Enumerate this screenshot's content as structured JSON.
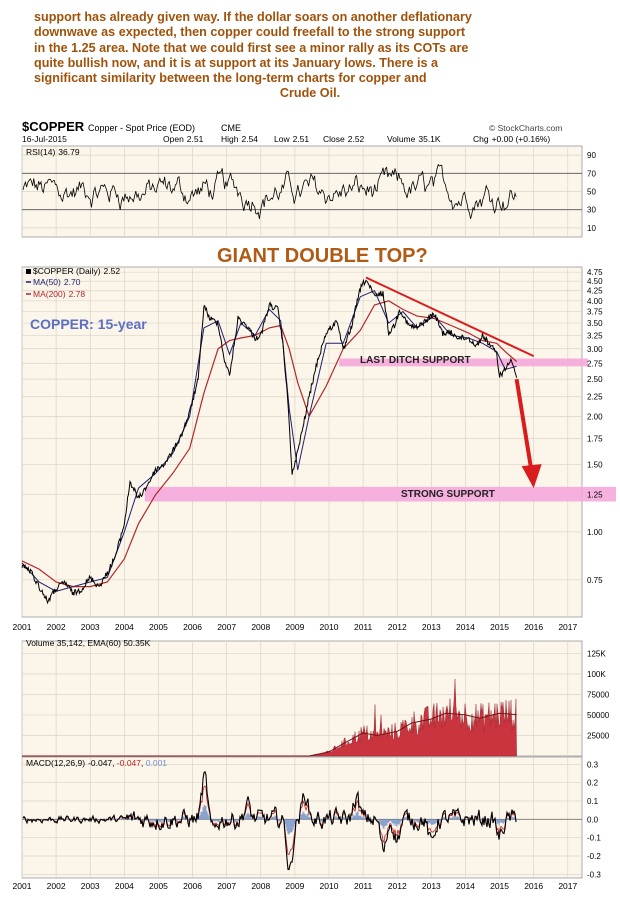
{
  "article": {
    "lines": [
      "support has already given way. If the dollar soars on another deflationary",
      "downwave as expected, then copper could freefall to the strong support",
      "in the 1.25 area. Note that we could first see a minor rally as its COTs are",
      "quite bullish now, and it is at support at its January lows. There is a",
      "significant similarity between the long-term charts for copper and",
      "Crude Oil."
    ]
  },
  "header": {
    "symbol": "$COPPER",
    "name": "Copper - Spot Price (EOD)",
    "exchange": "CME",
    "credit": "© StockCharts.com",
    "date": "16-Jul-2015",
    "open_label": "Open",
    "open": "2.51",
    "high_label": "High",
    "high": "2.54",
    "low_label": "Low",
    "low": "2.51",
    "close_label": "Close",
    "close": "2.52",
    "volume_label": "Volume",
    "volume": "35.1K",
    "chg_label": "Chg",
    "chg": "+0.00 (+0.16%)"
  },
  "colors": {
    "panel_bg": "#fcf6ea",
    "grid": "#d9d4c8",
    "price": "#000000",
    "ma50": "#1f1f6e",
    "ma200": "#b5262a",
    "trendline": "#d91d1d",
    "support_band": "#f5a9dc",
    "annotation_title": "#b05a14",
    "copper_label": "#5b6fc4",
    "volume_fill": "#c9343f",
    "macd": "#000000",
    "macd_signal": "#c22020",
    "macd_hist": "#6f8fc8"
  },
  "chart_data": {
    "type": "line",
    "x_range": [
      "2001-01",
      "2017-06"
    ],
    "x_tick_labels": [
      "2001",
      "2002",
      "2003",
      "2004",
      "2005",
      "2006",
      "2007",
      "2008",
      "2009",
      "2010",
      "2011",
      "2012",
      "2013",
      "2014",
      "2015",
      "2016",
      "2017"
    ],
    "rsi": {
      "label": "RSI(14)",
      "value": "36.79",
      "ticks": [
        "90",
        "70",
        "50",
        "30",
        "10"
      ],
      "ylim": [
        0,
        100
      ]
    },
    "price": {
      "legend": {
        "main": "$COPPER (Daily)",
        "main_value": "2.52",
        "ma50": "MA(50)",
        "ma50_value": "2.70",
        "ma200": "MA(200)",
        "ma200_value": "2.78"
      },
      "scale": "log",
      "ylim": [
        0.6,
        4.9
      ],
      "ticks": [
        "4.75",
        "4.50",
        "4.25",
        "4.00",
        "3.75",
        "3.50",
        "3.25",
        "3.00",
        "2.75",
        "2.50",
        "2.25",
        "2.00",
        "1.75",
        "1.50",
        "1.25",
        "1.00",
        "0.75"
      ],
      "series": [
        {
          "name": "$COPPER",
          "x": [
            "2001-01",
            "2001-04",
            "2001-07",
            "2001-10",
            "2002-01",
            "2002-04",
            "2002-07",
            "2002-10",
            "2003-01",
            "2003-04",
            "2003-07",
            "2003-10",
            "2004-01",
            "2004-03",
            "2004-06",
            "2004-09",
            "2004-12",
            "2005-03",
            "2005-06",
            "2005-09",
            "2005-12",
            "2006-03",
            "2006-05",
            "2006-07",
            "2006-10",
            "2006-12",
            "2007-02",
            "2007-05",
            "2007-08",
            "2007-11",
            "2008-01",
            "2008-04",
            "2008-07",
            "2008-09",
            "2008-11",
            "2008-12",
            "2009-03",
            "2009-06",
            "2009-09",
            "2009-12",
            "2010-04",
            "2010-06",
            "2010-09",
            "2010-12",
            "2011-02",
            "2011-05",
            "2011-08",
            "2011-10",
            "2011-12",
            "2012-02",
            "2012-05",
            "2012-08",
            "2012-11",
            "2013-02",
            "2013-05",
            "2013-08",
            "2013-11",
            "2014-02",
            "2014-05",
            "2014-07",
            "2014-10",
            "2014-12",
            "2015-01",
            "2015-03",
            "2015-05",
            "2015-07"
          ],
          "y": [
            0.82,
            0.79,
            0.72,
            0.66,
            0.71,
            0.74,
            0.69,
            0.71,
            0.76,
            0.72,
            0.78,
            0.87,
            1.05,
            1.35,
            1.22,
            1.32,
            1.45,
            1.5,
            1.62,
            1.78,
            2.05,
            2.5,
            3.9,
            3.6,
            3.5,
            2.85,
            2.55,
            3.6,
            3.45,
            3.2,
            3.25,
            3.9,
            3.8,
            3.0,
            1.95,
            1.4,
            1.75,
            2.25,
            2.8,
            3.3,
            3.55,
            2.95,
            3.45,
            4.3,
            4.55,
            4.1,
            4.2,
            3.3,
            3.45,
            3.8,
            3.45,
            3.4,
            3.55,
            3.7,
            3.3,
            3.3,
            3.2,
            3.2,
            3.05,
            3.25,
            3.05,
            2.9,
            2.55,
            2.65,
            2.85,
            2.52
          ]
        },
        {
          "name": "MA(50)",
          "x": [
            "2001-01",
            "2001-07",
            "2002-01",
            "2002-07",
            "2003-01",
            "2003-07",
            "2004-01",
            "2004-06",
            "2004-12",
            "2005-06",
            "2005-12",
            "2006-05",
            "2006-10",
            "2007-02",
            "2007-06",
            "2007-11",
            "2008-04",
            "2008-08",
            "2008-11",
            "2009-02",
            "2009-06",
            "2009-12",
            "2010-06",
            "2010-12",
            "2011-05",
            "2011-10",
            "2012-03",
            "2012-08",
            "2013-02",
            "2013-08",
            "2014-02",
            "2014-07",
            "2014-12",
            "2015-03",
            "2015-07"
          ],
          "y": [
            0.83,
            0.74,
            0.7,
            0.72,
            0.74,
            0.76,
            1.0,
            1.3,
            1.42,
            1.6,
            2.0,
            3.4,
            3.55,
            2.9,
            3.5,
            3.25,
            3.8,
            3.55,
            2.1,
            1.45,
            2.0,
            3.1,
            3.1,
            4.1,
            4.25,
            3.5,
            3.75,
            3.4,
            3.65,
            3.25,
            3.2,
            3.1,
            2.95,
            2.65,
            2.7
          ]
        },
        {
          "name": "MA(200)",
          "x": [
            "2001-01",
            "2001-07",
            "2002-01",
            "2002-07",
            "2003-01",
            "2003-07",
            "2004-01",
            "2004-06",
            "2004-12",
            "2005-06",
            "2005-12",
            "2006-05",
            "2006-10",
            "2007-02",
            "2007-06",
            "2007-11",
            "2008-04",
            "2008-08",
            "2008-11",
            "2009-02",
            "2009-06",
            "2009-12",
            "2010-06",
            "2010-12",
            "2011-05",
            "2011-10",
            "2012-03",
            "2012-08",
            "2013-02",
            "2013-08",
            "2014-02",
            "2014-07",
            "2014-12",
            "2015-03",
            "2015-07"
          ],
          "y": [
            0.84,
            0.8,
            0.74,
            0.72,
            0.72,
            0.74,
            0.85,
            1.05,
            1.25,
            1.42,
            1.65,
            2.3,
            3.0,
            3.15,
            3.2,
            3.25,
            3.4,
            3.45,
            3.0,
            2.45,
            2.0,
            2.4,
            3.0,
            3.35,
            3.9,
            4.0,
            3.8,
            3.65,
            3.6,
            3.45,
            3.3,
            3.15,
            3.1,
            2.95,
            2.78
          ]
        }
      ],
      "annotations": {
        "title": "GIANT DOUBLE TOP?",
        "copper_label": "COPPER: 15-year",
        "last_ditch": "LAST DITCH SUPPORT",
        "strong_support": "STRONG SUPPORT"
      },
      "bands": {
        "last_ditch_range": [
          2.7,
          2.83
        ],
        "strong_support_range": [
          1.2,
          1.31
        ]
      },
      "trendline": {
        "x": [
          "2011-02",
          "2016-01"
        ],
        "y": [
          4.6,
          2.87
        ]
      },
      "arrow": {
        "x": [
          "2015-07",
          "2016-01"
        ],
        "y": [
          2.5,
          1.3
        ]
      }
    },
    "volume": {
      "legend": "Volume 35,142, EMA(60) 50.35K",
      "ticks": [
        "125K",
        "100K",
        "75000",
        "50000",
        "25000"
      ],
      "ylim": [
        0,
        140000
      ],
      "ema_x": [
        "2001-01",
        "2004-01",
        "2007-01",
        "2008-06",
        "2009-06",
        "2010-01",
        "2010-06",
        "2011-01",
        "2011-06",
        "2012-01",
        "2012-06",
        "2013-01",
        "2013-06",
        "2014-01",
        "2014-06",
        "2015-01",
        "2015-07"
      ],
      "ema_y": [
        0,
        0,
        0,
        0,
        0,
        5000,
        15000,
        28000,
        25000,
        30000,
        40000,
        45000,
        52000,
        50000,
        46000,
        52000,
        50350
      ]
    },
    "macd": {
      "label": "MACD(12,26,9)",
      "value": "-0.047",
      "signal": "-0.047",
      "hist": "0.001",
      "ticks": [
        "0.3",
        "0.2",
        "0.1",
        "0.0",
        "-0.1",
        "-0.2",
        "-0.3"
      ],
      "ylim": [
        -0.32,
        0.34
      ]
    }
  }
}
